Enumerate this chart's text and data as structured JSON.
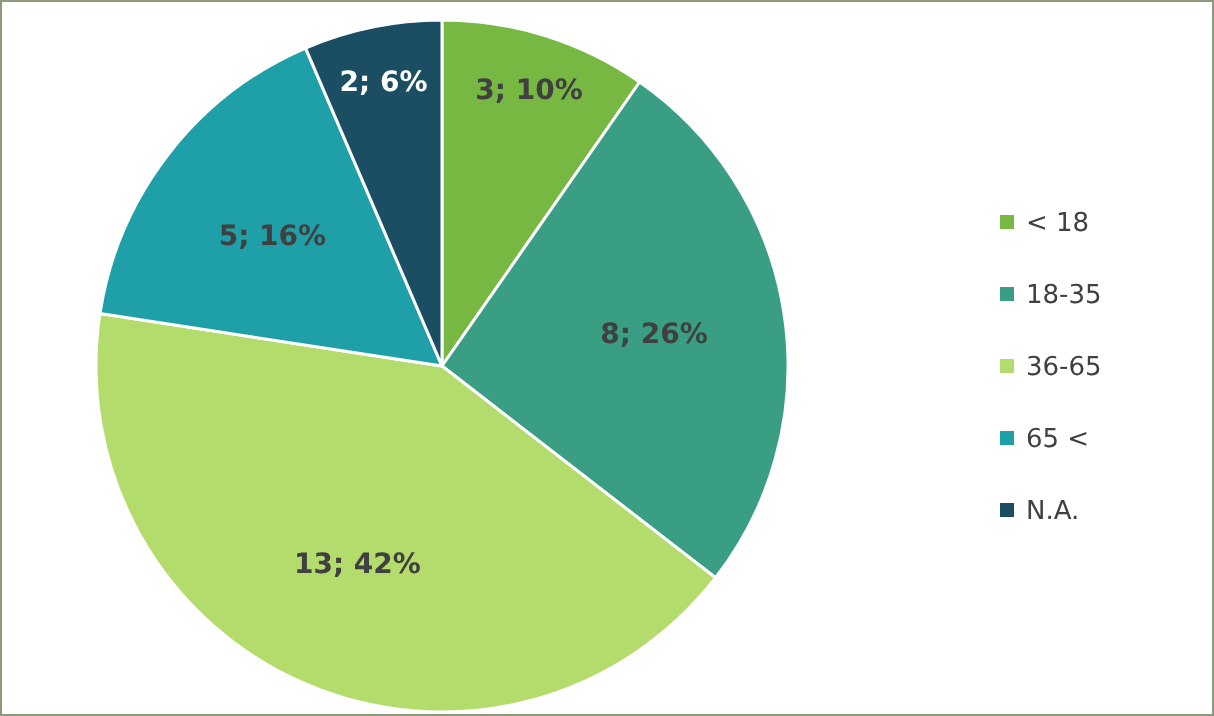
{
  "chart_data": {
    "type": "pie",
    "categories": [
      "< 18",
      "18-35",
      "36-65",
      "65 <",
      "N.A."
    ],
    "values": [
      3,
      8,
      13,
      5,
      2
    ],
    "colors": [
      "#77b843",
      "#3a9e84",
      "#b3dc6c",
      "#1fa0a8",
      "#1b4e62"
    ],
    "value_labels": [
      "3; 10%",
      "8; 26%",
      "13; 42%",
      "5; 16%",
      "2; 6%"
    ],
    "legend": "right"
  }
}
